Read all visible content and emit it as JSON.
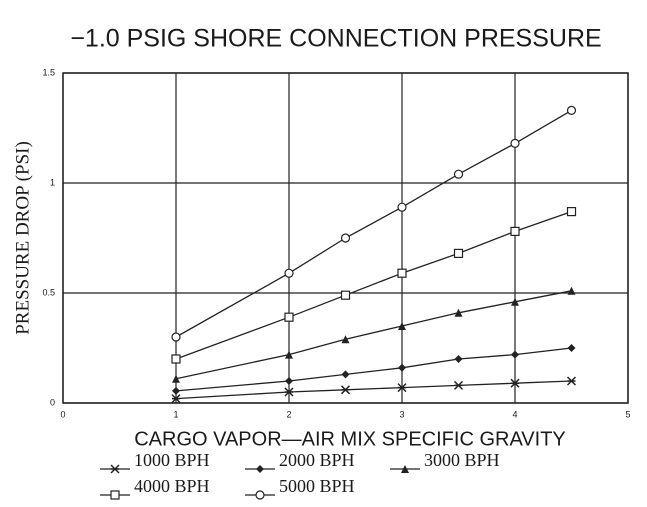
{
  "chart_data": {
    "type": "line",
    "title": "−1.0 PSIG SHORE CONNECTION PRESSURE",
    "x_label": "CARGO VAPOR—AIR MIX SPECIFIC GRAVITY",
    "y_label": "PRESSURE DROP (PSI)",
    "x": [
      1,
      2,
      2.5,
      3,
      3.5,
      4,
      4.5
    ],
    "series": [
      {
        "name": "1000 BPH",
        "color": "#222222",
        "marker": "star",
        "values": [
          0.02,
          0.05,
          0.06,
          0.07,
          0.08,
          0.09,
          0.1
        ]
      },
      {
        "name": "2000 BPH",
        "color": "#222222",
        "marker": "plus",
        "values": [
          0.055,
          0.1,
          0.13,
          0.16,
          0.2,
          0.22,
          0.25
        ]
      },
      {
        "name": "3000 BPH",
        "color": "#222222",
        "marker": "triangle",
        "values": [
          0.11,
          0.22,
          0.29,
          0.35,
          0.41,
          0.46,
          0.51
        ]
      },
      {
        "name": "4000 BPH",
        "color": "#222222",
        "marker": "square",
        "values": [
          0.2,
          0.39,
          0.49,
          0.59,
          0.68,
          0.78,
          0.87
        ]
      },
      {
        "name": "5000 BPH",
        "color": "#222222",
        "marker": "circle",
        "values": [
          0.3,
          0.59,
          0.75,
          0.89,
          1.04,
          1.18,
          1.33
        ]
      }
    ],
    "xlim": [
      0,
      5
    ],
    "xticks": [
      0,
      1,
      2,
      3,
      4,
      5
    ],
    "ylim": [
      0,
      1.5
    ],
    "yticks": [
      0,
      0.5,
      1,
      1.5
    ],
    "grid": true
  }
}
